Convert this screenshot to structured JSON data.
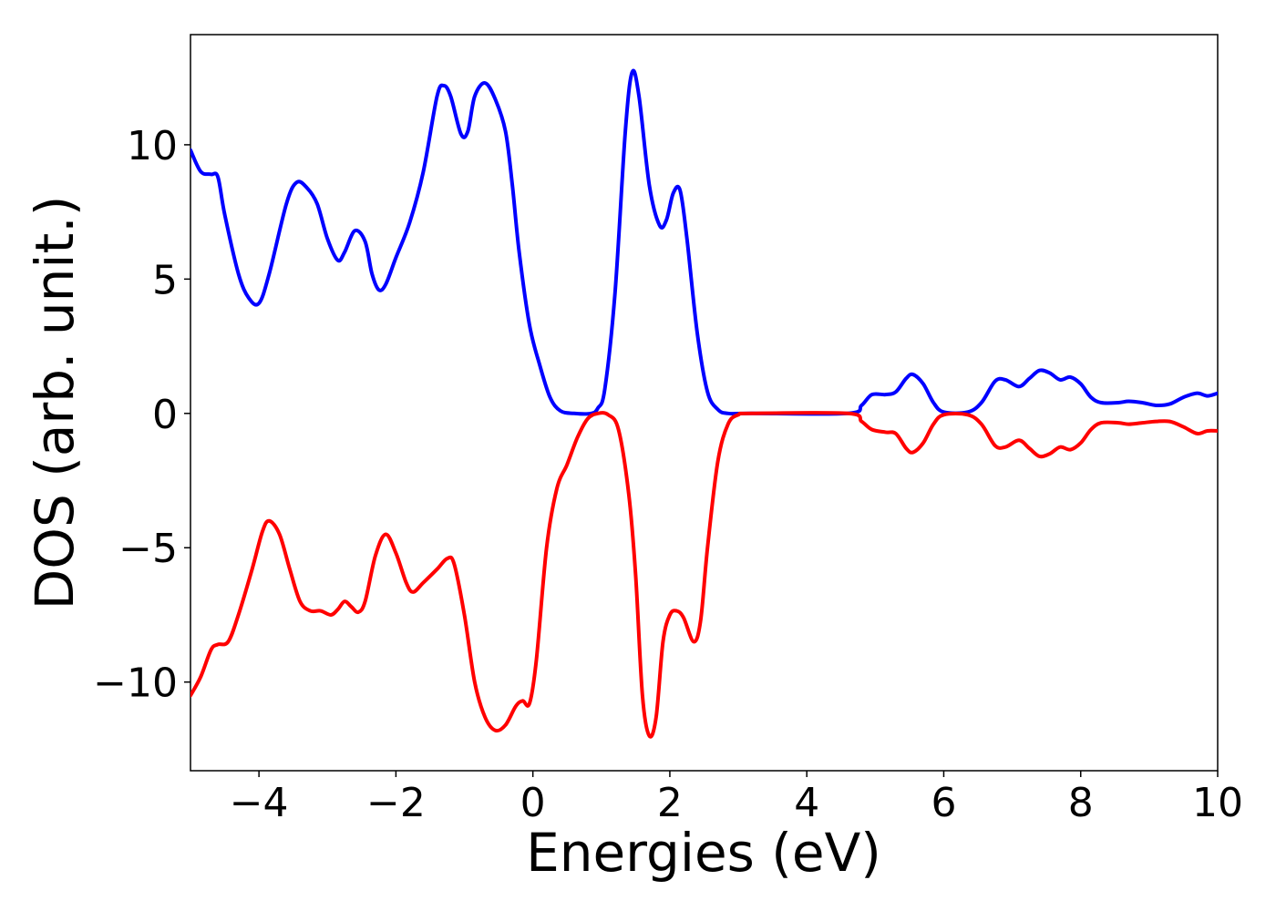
{
  "chart_data": {
    "type": "line",
    "title": "",
    "xlabel": "Energies (eV)",
    "ylabel": "DOS (arb. unit.)",
    "xlim": [
      -5,
      10
    ],
    "ylim": [
      -13.3,
      14.1
    ],
    "grid": false,
    "legend": "none",
    "x_ticks": [
      -4,
      -2,
      0,
      2,
      4,
      6,
      8,
      10
    ],
    "x_tick_labels": [
      "−4",
      "−2",
      "0",
      "2",
      "4",
      "6",
      "8",
      "10"
    ],
    "y_ticks": [
      10,
      5,
      0,
      -5,
      -10
    ],
    "y_tick_labels": [
      "10",
      "5",
      "0",
      "−5",
      "−10"
    ],
    "series": [
      {
        "color": "#0000ff",
        "points": [
          [
            -5.0,
            9.8
          ],
          [
            -4.85,
            9.0
          ],
          [
            -4.7,
            8.9
          ],
          [
            -4.6,
            8.8
          ],
          [
            -4.5,
            7.4
          ],
          [
            -4.3,
            5.2
          ],
          [
            -4.15,
            4.3
          ],
          [
            -4.0,
            4.1
          ],
          [
            -3.85,
            5.2
          ],
          [
            -3.6,
            7.8
          ],
          [
            -3.45,
            8.6
          ],
          [
            -3.3,
            8.4
          ],
          [
            -3.15,
            7.8
          ],
          [
            -3.0,
            6.5
          ],
          [
            -2.85,
            5.7
          ],
          [
            -2.75,
            6.0
          ],
          [
            -2.6,
            6.8
          ],
          [
            -2.45,
            6.4
          ],
          [
            -2.35,
            5.2
          ],
          [
            -2.25,
            4.6
          ],
          [
            -2.15,
            4.8
          ],
          [
            -2.0,
            5.8
          ],
          [
            -1.8,
            7.1
          ],
          [
            -1.6,
            9.0
          ],
          [
            -1.4,
            11.8
          ],
          [
            -1.3,
            12.2
          ],
          [
            -1.2,
            11.8
          ],
          [
            -1.05,
            10.4
          ],
          [
            -0.95,
            10.5
          ],
          [
            -0.85,
            11.8
          ],
          [
            -0.7,
            12.3
          ],
          [
            -0.55,
            11.7
          ],
          [
            -0.4,
            10.5
          ],
          [
            -0.3,
            8.5
          ],
          [
            -0.2,
            6.0
          ],
          [
            -0.05,
            3.3
          ],
          [
            0.1,
            1.8
          ],
          [
            0.25,
            0.6
          ],
          [
            0.4,
            0.1
          ],
          [
            0.6,
            0.0
          ],
          [
            0.85,
            0.0
          ],
          [
            0.95,
            0.2
          ],
          [
            1.05,
            0.9
          ],
          [
            1.2,
            4.5
          ],
          [
            1.35,
            10.5
          ],
          [
            1.45,
            12.7
          ],
          [
            1.55,
            11.8
          ],
          [
            1.7,
            8.5
          ],
          [
            1.85,
            7.0
          ],
          [
            1.95,
            7.2
          ],
          [
            2.05,
            8.2
          ],
          [
            2.15,
            8.3
          ],
          [
            2.25,
            6.5
          ],
          [
            2.4,
            3.0
          ],
          [
            2.55,
            0.8
          ],
          [
            2.7,
            0.15
          ],
          [
            2.85,
            0.0
          ],
          [
            3.2,
            0.0
          ],
          [
            4.6,
            0.0
          ],
          [
            4.8,
            0.3
          ],
          [
            4.95,
            0.7
          ],
          [
            5.15,
            0.7
          ],
          [
            5.3,
            0.8
          ],
          [
            5.45,
            1.3
          ],
          [
            5.55,
            1.45
          ],
          [
            5.7,
            1.1
          ],
          [
            5.85,
            0.4
          ],
          [
            6.0,
            0.05
          ],
          [
            6.35,
            0.05
          ],
          [
            6.55,
            0.4
          ],
          [
            6.75,
            1.2
          ],
          [
            6.9,
            1.25
          ],
          [
            7.1,
            1.0
          ],
          [
            7.25,
            1.3
          ],
          [
            7.4,
            1.6
          ],
          [
            7.55,
            1.5
          ],
          [
            7.7,
            1.25
          ],
          [
            7.85,
            1.35
          ],
          [
            8.0,
            1.1
          ],
          [
            8.15,
            0.6
          ],
          [
            8.3,
            0.4
          ],
          [
            8.55,
            0.4
          ],
          [
            8.7,
            0.45
          ],
          [
            8.9,
            0.4
          ],
          [
            9.1,
            0.3
          ],
          [
            9.3,
            0.35
          ],
          [
            9.5,
            0.6
          ],
          [
            9.7,
            0.75
          ],
          [
            9.85,
            0.65
          ],
          [
            10.0,
            0.75
          ]
        ]
      },
      {
        "color": "#ff0000",
        "points": [
          [
            -5.0,
            -10.5
          ],
          [
            -4.85,
            -9.8
          ],
          [
            -4.7,
            -8.8
          ],
          [
            -4.6,
            -8.6
          ],
          [
            -4.45,
            -8.5
          ],
          [
            -4.3,
            -7.5
          ],
          [
            -4.1,
            -5.8
          ],
          [
            -3.95,
            -4.4
          ],
          [
            -3.85,
            -4.0
          ],
          [
            -3.7,
            -4.5
          ],
          [
            -3.55,
            -5.8
          ],
          [
            -3.4,
            -7.0
          ],
          [
            -3.25,
            -7.35
          ],
          [
            -3.1,
            -7.35
          ],
          [
            -2.95,
            -7.5
          ],
          [
            -2.85,
            -7.3
          ],
          [
            -2.75,
            -7.0
          ],
          [
            -2.65,
            -7.2
          ],
          [
            -2.55,
            -7.4
          ],
          [
            -2.45,
            -7.0
          ],
          [
            -2.3,
            -5.3
          ],
          [
            -2.15,
            -4.5
          ],
          [
            -2.0,
            -5.2
          ],
          [
            -1.85,
            -6.3
          ],
          [
            -1.75,
            -6.65
          ],
          [
            -1.6,
            -6.3
          ],
          [
            -1.4,
            -5.8
          ],
          [
            -1.25,
            -5.4
          ],
          [
            -1.15,
            -5.6
          ],
          [
            -1.0,
            -7.5
          ],
          [
            -0.85,
            -10.0
          ],
          [
            -0.7,
            -11.3
          ],
          [
            -0.55,
            -11.8
          ],
          [
            -0.4,
            -11.6
          ],
          [
            -0.25,
            -10.9
          ],
          [
            -0.15,
            -10.7
          ],
          [
            -0.05,
            -10.8
          ],
          [
            0.05,
            -9.2
          ],
          [
            0.2,
            -5.0
          ],
          [
            0.35,
            -2.8
          ],
          [
            0.5,
            -1.9
          ],
          [
            0.65,
            -0.9
          ],
          [
            0.8,
            -0.2
          ],
          [
            0.95,
            0.0
          ],
          [
            1.1,
            -0.05
          ],
          [
            1.25,
            -0.6
          ],
          [
            1.4,
            -3.0
          ],
          [
            1.5,
            -6.0
          ],
          [
            1.6,
            -10.5
          ],
          [
            1.7,
            -12.0
          ],
          [
            1.8,
            -11.3
          ],
          [
            1.9,
            -8.5
          ],
          [
            2.0,
            -7.5
          ],
          [
            2.1,
            -7.35
          ],
          [
            2.2,
            -7.6
          ],
          [
            2.35,
            -8.5
          ],
          [
            2.45,
            -7.7
          ],
          [
            2.55,
            -5.0
          ],
          [
            2.7,
            -1.8
          ],
          [
            2.85,
            -0.4
          ],
          [
            3.0,
            -0.05
          ],
          [
            3.2,
            0.0
          ],
          [
            4.6,
            0.0
          ],
          [
            4.8,
            -0.3
          ],
          [
            4.95,
            -0.6
          ],
          [
            5.15,
            -0.7
          ],
          [
            5.3,
            -0.75
          ],
          [
            5.45,
            -1.3
          ],
          [
            5.55,
            -1.45
          ],
          [
            5.7,
            -1.1
          ],
          [
            5.85,
            -0.4
          ],
          [
            6.0,
            -0.05
          ],
          [
            6.35,
            -0.05
          ],
          [
            6.55,
            -0.4
          ],
          [
            6.75,
            -1.2
          ],
          [
            6.9,
            -1.25
          ],
          [
            7.1,
            -1.0
          ],
          [
            7.25,
            -1.3
          ],
          [
            7.4,
            -1.6
          ],
          [
            7.55,
            -1.5
          ],
          [
            7.7,
            -1.25
          ],
          [
            7.85,
            -1.35
          ],
          [
            8.0,
            -1.1
          ],
          [
            8.15,
            -0.6
          ],
          [
            8.3,
            -0.35
          ],
          [
            8.55,
            -0.35
          ],
          [
            8.7,
            -0.4
          ],
          [
            8.9,
            -0.35
          ],
          [
            9.1,
            -0.3
          ],
          [
            9.3,
            -0.3
          ],
          [
            9.5,
            -0.5
          ],
          [
            9.7,
            -0.75
          ],
          [
            9.85,
            -0.65
          ],
          [
            10.0,
            -0.65
          ]
        ]
      }
    ]
  }
}
